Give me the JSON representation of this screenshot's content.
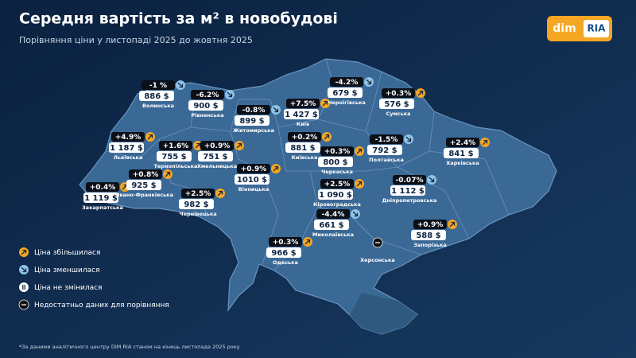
{
  "header": {
    "title": "Середня вартість за м² в новобудові",
    "subtitle": "Порівняння ціни у листопаді 2025 до жовтня 2025"
  },
  "logo": {
    "left": "dim",
    "right": "RIA"
  },
  "regions": [
    {
      "name": "Волинська",
      "change": "-1 %",
      "price": "886 $",
      "trend": "down"
    },
    {
      "name": "Рівненська",
      "change": "-6.2%",
      "price": "900 $",
      "trend": "down"
    },
    {
      "name": "Житомирська",
      "change": "-0.8%",
      "price": "899 $",
      "trend": "down"
    },
    {
      "name": "Київ",
      "change": "+7.5%",
      "price": "1 427 $",
      "trend": "up"
    },
    {
      "name": "Чернігівська",
      "change": "-4.2%",
      "price": "679 $",
      "trend": "down"
    },
    {
      "name": "Сумська",
      "change": "+0.3%",
      "price": "576 $",
      "trend": "up"
    },
    {
      "name": "Львівська",
      "change": "+4.9%",
      "price": "1 187 $",
      "trend": "up"
    },
    {
      "name": "Тернопільська",
      "change": "+1.6%",
      "price": "755 $",
      "trend": "up"
    },
    {
      "name": "Хмельницька",
      "change": "+0.9%",
      "price": "751 $",
      "trend": "up"
    },
    {
      "name": "Київська",
      "change": "+0.2%",
      "price": "881 $",
      "trend": "up"
    },
    {
      "name": "Черкаська",
      "change": "+0.3%",
      "price": "800 $",
      "trend": "up"
    },
    {
      "name": "Полтавська",
      "change": "-1.5%",
      "price": "792 $",
      "trend": "down"
    },
    {
      "name": "Харківська",
      "change": "+2.4%",
      "price": "841 $",
      "trend": "up"
    },
    {
      "name": "Вінницька",
      "change": "+0.9%",
      "price": "1010 $",
      "trend": "up"
    },
    {
      "name": "Закарпатська",
      "change": "+0.4%",
      "price": "1 119 $",
      "trend": "up"
    },
    {
      "name": "Івано-Франківська",
      "change": "+0.8%",
      "price": "925 $",
      "trend": "up"
    },
    {
      "name": "Чернівецька",
      "change": "+2.5%",
      "price": "982 $",
      "trend": "up"
    },
    {
      "name": "Кіровоградська",
      "change": "+2.5%",
      "price": "1 090 $",
      "trend": "up"
    },
    {
      "name": "Дніпропетровська",
      "change": "-0.07%",
      "price": "1 112 $",
      "trend": "down"
    },
    {
      "name": "Миколаївська",
      "change": "-4.4%",
      "price": "661 $",
      "trend": "down"
    },
    {
      "name": "Запорізька",
      "change": "+0.9%",
      "price": "588 $",
      "trend": "up"
    },
    {
      "name": "Одеська",
      "change": "+0.3%",
      "price": "966 $",
      "trend": "up"
    },
    {
      "name": "Херсонська",
      "trend": "nodata"
    }
  ],
  "legend": [
    {
      "label": "Ціна збільшилася",
      "trend": "up"
    },
    {
      "label": "Ціна зменшилася",
      "trend": "down"
    },
    {
      "label": "Ціна не змінилася",
      "trend": "same"
    },
    {
      "label": "Недостатньо даних для порівняння",
      "trend": "nodata"
    }
  ],
  "footnote": "*За даними аналітичного центру DIM.RIA станом на кінець листопада 2025 року"
}
